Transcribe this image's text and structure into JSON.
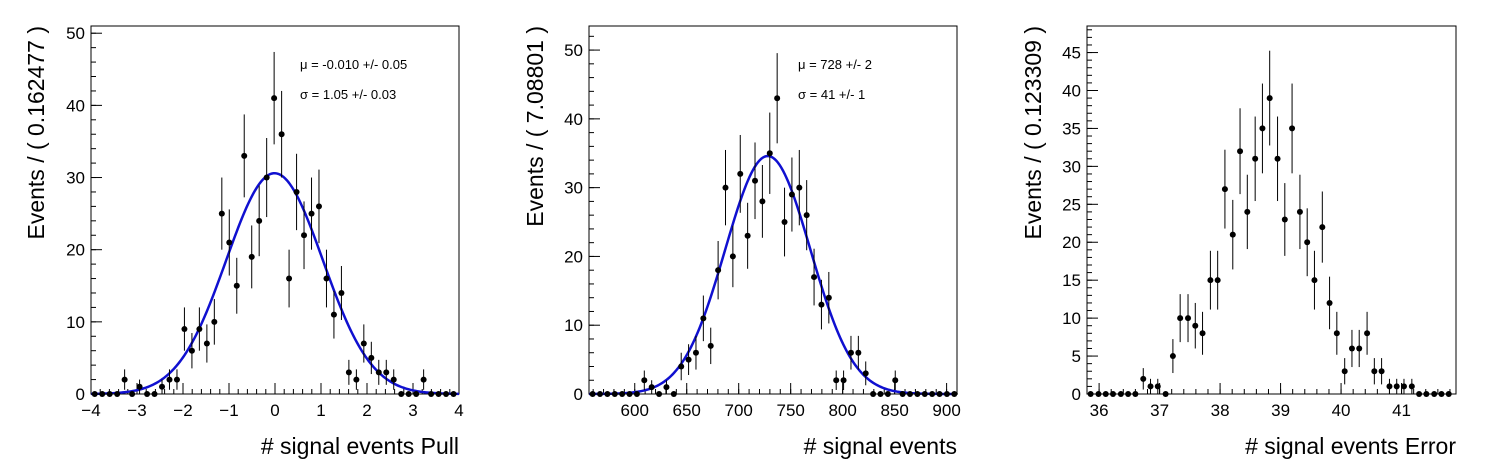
{
  "chart_data": [
    {
      "type": "scatter",
      "xlabel": "# signal events Pull",
      "ylabel": "Events / ( 0.162477 )",
      "xlim": [
        -4,
        4
      ],
      "ylim": [
        0,
        51
      ],
      "xticks": [
        "−4",
        "−3",
        "−2",
        "−1",
        "0",
        "1",
        "2",
        "3",
        "4"
      ],
      "xtick_values": [
        -4,
        -3,
        -2,
        -1,
        0,
        1,
        2,
        3,
        4
      ],
      "yticks": [
        "0",
        "10",
        "20",
        "30",
        "40",
        "50"
      ],
      "ytick_values": [
        0,
        10,
        20,
        30,
        40,
        50
      ],
      "annotations": [
        "μ = -0.010 +/- 0.05",
        "σ =  1.05 +/- 0.03"
      ],
      "fit": {
        "type": "gaussian",
        "mean": -0.01,
        "sigma": 1.05,
        "peak": 30.6,
        "color": "#1010d0"
      },
      "points": {
        "x": [
          -3.919,
          -3.756,
          -3.594,
          -3.431,
          -3.269,
          -3.106,
          -2.944,
          -2.781,
          -2.619,
          -2.456,
          -2.294,
          -2.131,
          -1.969,
          -1.806,
          -1.644,
          -1.481,
          -1.319,
          -1.156,
          -0.994,
          -0.831,
          -0.669,
          -0.506,
          -0.344,
          -0.181,
          -0.019,
          0.144,
          0.306,
          0.469,
          0.631,
          0.794,
          0.956,
          1.119,
          1.281,
          1.444,
          1.606,
          1.769,
          1.931,
          2.094,
          2.256,
          2.419,
          2.581,
          2.744,
          2.906,
          3.069,
          3.231,
          3.394,
          3.556,
          3.719,
          3.881
        ],
        "y": [
          0,
          0,
          0,
          0,
          2,
          0,
          1,
          0,
          0,
          1,
          2,
          2,
          9,
          6,
          9,
          7,
          10,
          25,
          21,
          15,
          33,
          19,
          24,
          30,
          41,
          36,
          16,
          28,
          22,
          25,
          26,
          16,
          11,
          14,
          3,
          2,
          7,
          5,
          3,
          3,
          2,
          0,
          0,
          0,
          2,
          0,
          0,
          0,
          0
        ],
        "color": "#000000"
      }
    },
    {
      "type": "scatter",
      "xlabel": "# signal events",
      "ylabel": "Events / ( 7.08801 )",
      "xlim": [
        556,
        910
      ],
      "ylim": [
        0,
        53.5
      ],
      "xticks": [
        "600",
        "650",
        "700",
        "750",
        "800",
        "850",
        "900"
      ],
      "xtick_values": [
        600,
        650,
        700,
        750,
        800,
        850,
        900
      ],
      "yticks": [
        "0",
        "10",
        "20",
        "30",
        "40",
        "50"
      ],
      "ytick_values": [
        0,
        10,
        20,
        30,
        40,
        50
      ],
      "annotations": [
        "μ =  728 +/- 2",
        "σ =  41 +/- 1"
      ],
      "fit": {
        "type": "gaussian",
        "mean": 728,
        "sigma": 41,
        "peak": 34.6,
        "color": "#1010d0"
      },
      "points": {
        "x": [
          559.5,
          566.6,
          573.7,
          580.8,
          587.9,
          595.0,
          602.1,
          609.2,
          616.3,
          623.4,
          630.5,
          637.6,
          644.7,
          651.8,
          658.9,
          666.0,
          673.1,
          680.2,
          687.3,
          694.4,
          701.5,
          708.6,
          715.7,
          722.8,
          729.9,
          737.0,
          744.1,
          751.2,
          758.3,
          765.4,
          772.5,
          779.6,
          786.7,
          793.8,
          800.9,
          808.0,
          815.1,
          822.2,
          829.3,
          836.4,
          843.5,
          850.6,
          857.7,
          864.8,
          871.9,
          879.0,
          886.1,
          893.2,
          900.3,
          907.4
        ],
        "y": [
          0,
          0,
          0,
          0,
          0,
          0,
          0,
          2,
          1,
          0,
          1,
          0,
          4,
          5,
          6,
          11,
          7,
          18,
          30,
          20,
          32,
          23,
          31,
          28,
          35,
          43,
          25,
          29,
          30,
          26,
          17,
          13,
          14,
          2,
          2,
          6,
          6,
          3,
          0,
          0,
          0,
          2,
          0,
          0,
          0,
          0,
          0,
          0,
          0,
          0
        ],
        "color": "#000000"
      }
    },
    {
      "type": "scatter",
      "xlabel": "# signal events Error",
      "ylabel": "Events / ( 0.123309 )",
      "xlim": [
        35.8,
        41.9
      ],
      "ylim": [
        0,
        48.5
      ],
      "xticks": [
        "36",
        "37",
        "38",
        "39",
        "40",
        "41"
      ],
      "xtick_values": [
        36,
        37,
        38,
        39,
        40,
        41
      ],
      "yticks": [
        "0",
        "5",
        "10",
        "15",
        "20",
        "25",
        "30",
        "35",
        "40",
        "45"
      ],
      "ytick_values": [
        0,
        5,
        10,
        15,
        20,
        25,
        30,
        35,
        40,
        45
      ],
      "annotations": [],
      "points": {
        "x": [
          35.86,
          35.99,
          36.11,
          36.23,
          36.36,
          36.48,
          36.6,
          36.73,
          36.85,
          36.97,
          37.1,
          37.22,
          37.34,
          37.47,
          37.59,
          37.71,
          37.84,
          37.96,
          38.08,
          38.21,
          38.33,
          38.45,
          38.58,
          38.7,
          38.82,
          38.95,
          39.07,
          39.19,
          39.32,
          39.44,
          39.56,
          39.69,
          39.81,
          39.93,
          40.06,
          40.18,
          40.3,
          40.43,
          40.55,
          40.67,
          40.8,
          40.92,
          41.04,
          41.17,
          41.29,
          41.41,
          41.54,
          41.66,
          41.78
        ],
        "y": [
          0,
          0,
          0,
          0,
          0,
          0,
          0,
          2,
          1,
          1,
          0,
          5,
          10,
          10,
          9,
          8,
          15,
          15,
          27,
          21,
          32,
          24,
          31,
          35,
          39,
          31,
          23,
          35,
          24,
          20,
          15,
          22,
          12,
          8,
          3,
          6,
          6,
          8,
          3,
          3,
          1,
          1,
          1,
          1,
          0,
          0,
          0,
          0,
          0
        ],
        "color": "#000000"
      }
    }
  ]
}
